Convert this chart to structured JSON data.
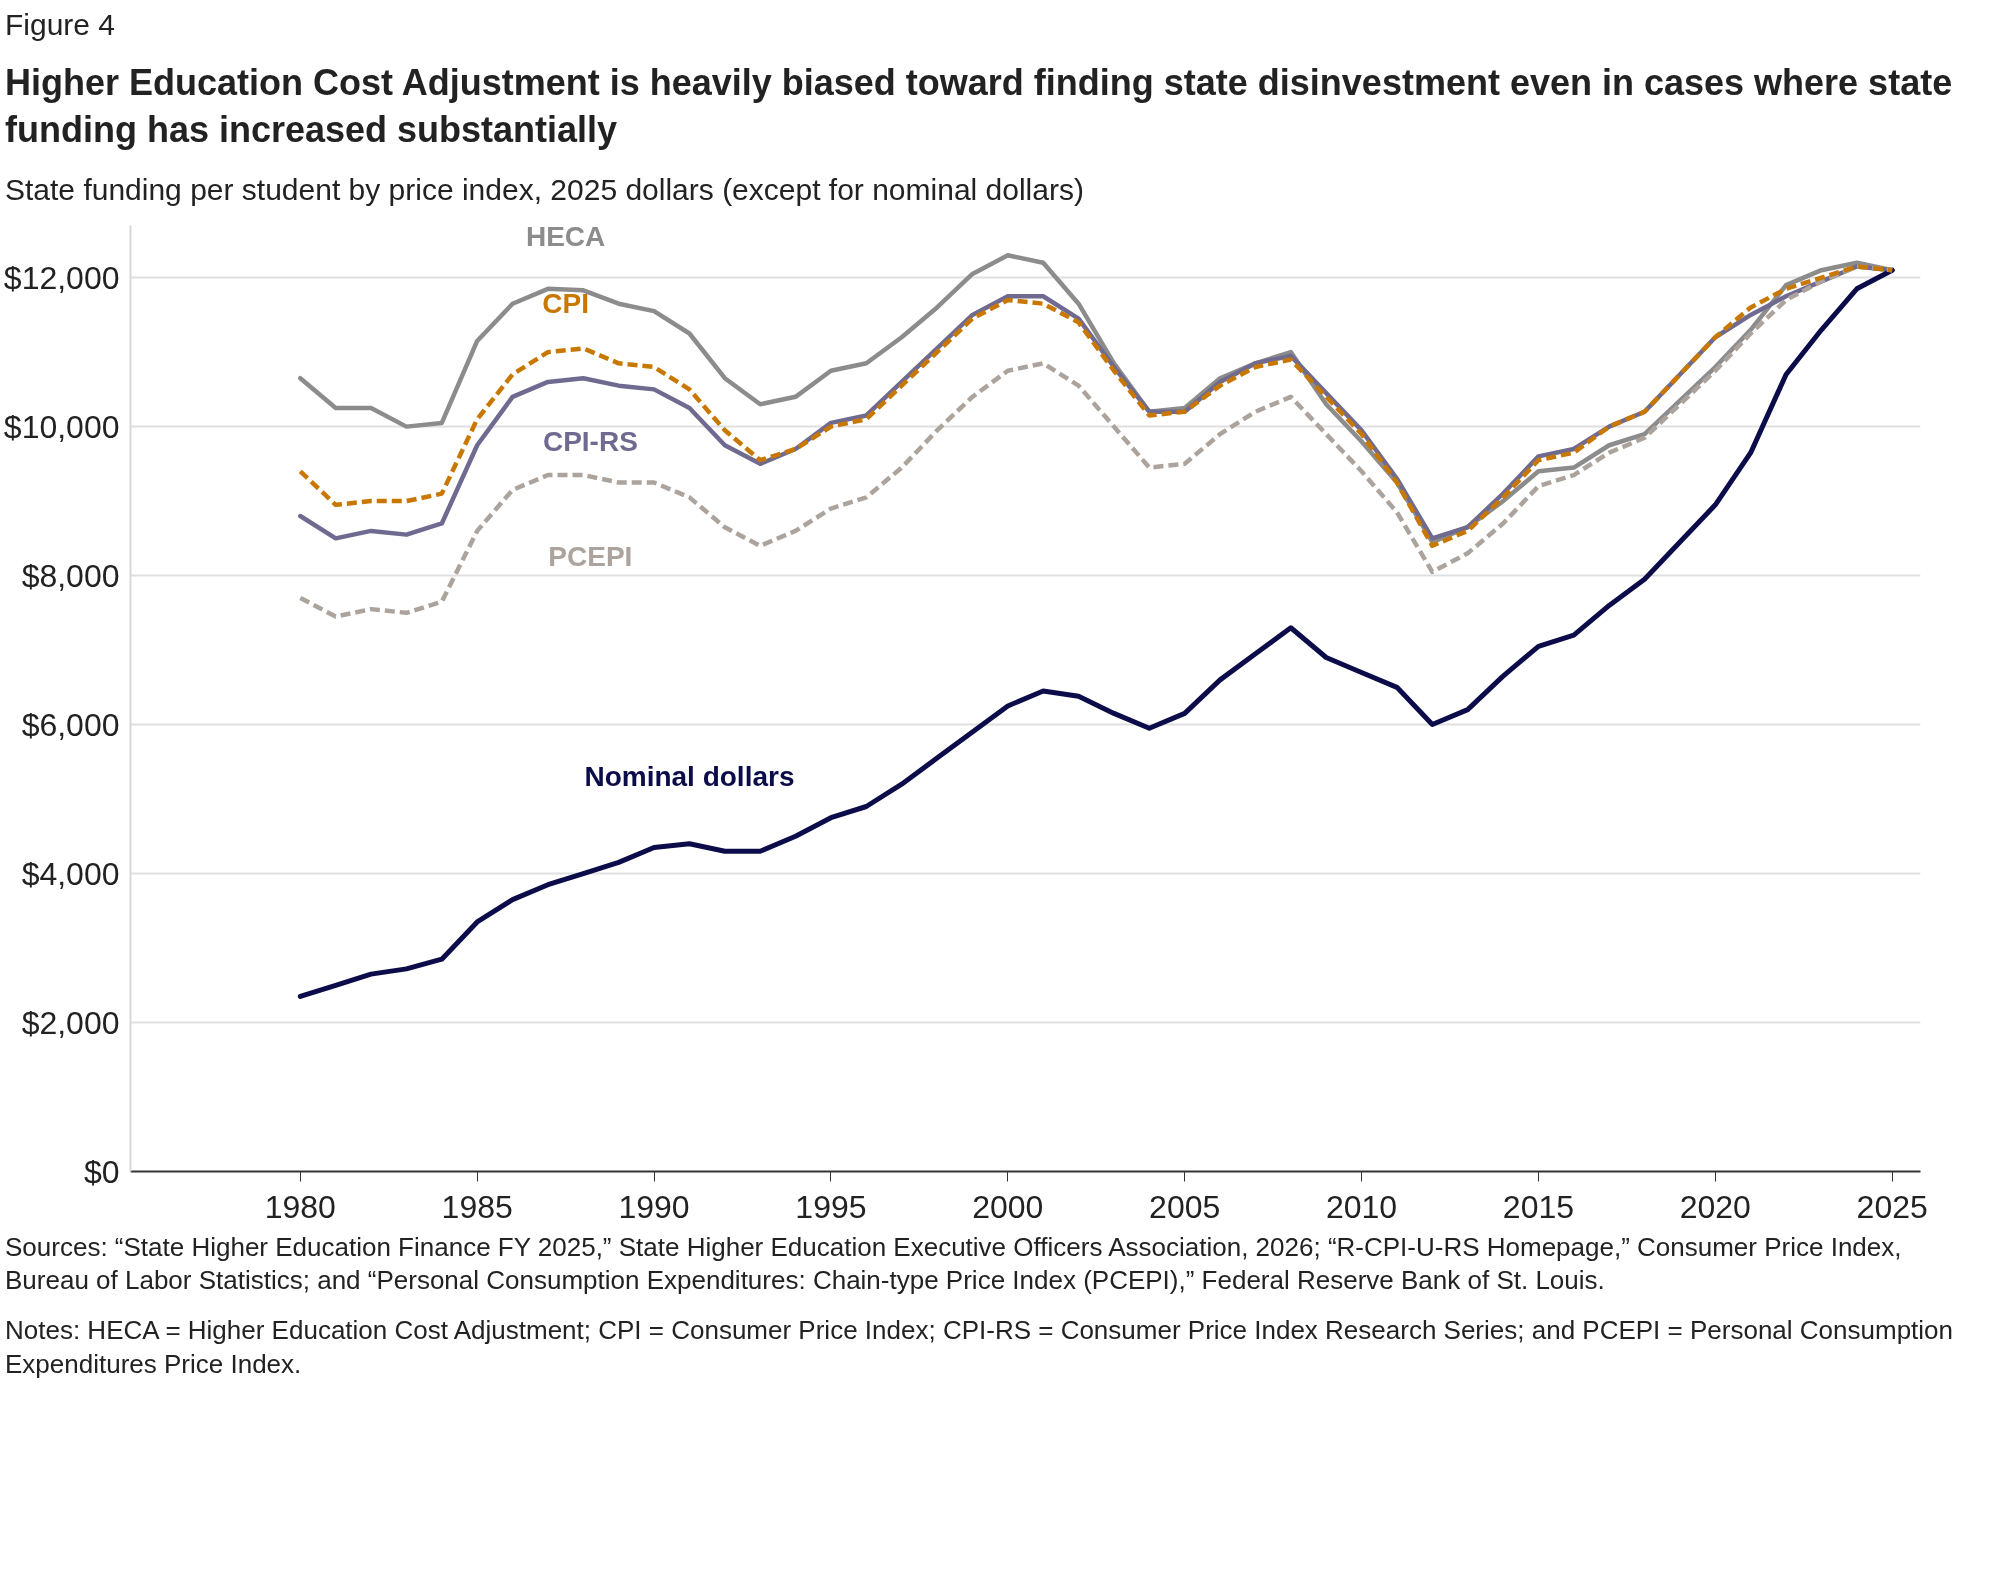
{
  "chart_data": {
    "type": "line",
    "title": "Higher Education Cost Adjustment is heavily biased toward finding state disinvestment even in cases where state funding has increased substantially",
    "subtitle": "State funding per student by price index, 2025 dollars (except for nominal dollars)",
    "x": [
      1980,
      1981,
      1982,
      1983,
      1984,
      1985,
      1986,
      1987,
      1988,
      1989,
      1990,
      1991,
      1992,
      1993,
      1994,
      1995,
      1996,
      1997,
      1998,
      1999,
      2000,
      2001,
      2002,
      2003,
      2004,
      2005,
      2006,
      2007,
      2008,
      2009,
      2010,
      2011,
      2012,
      2013,
      2014,
      2015,
      2016,
      2017,
      2018,
      2019,
      2020,
      2021,
      2022,
      2023,
      2024,
      2025
    ],
    "series": [
      {
        "name": "HECA",
        "color": "#8c8c8c",
        "line_style": "solid",
        "values": [
          10650,
          10250,
          10250,
          10000,
          10050,
          11150,
          11650,
          11850,
          11830,
          11650,
          11550,
          11250,
          10650,
          10300,
          10400,
          10750,
          10850,
          11200,
          11600,
          12050,
          12300,
          12200,
          11650,
          10850,
          10200,
          10250,
          10650,
          10850,
          11000,
          10300,
          9800,
          9250,
          8450,
          8650,
          9000,
          9400,
          9450,
          9750,
          9900,
          10350,
          10800,
          11300,
          11900,
          12100,
          12200,
          12100
        ]
      },
      {
        "name": "CPI",
        "color": "#c87800",
        "line_style": "dashed",
        "values": [
          9400,
          8950,
          9000,
          9000,
          9100,
          10100,
          10700,
          11000,
          11050,
          10850,
          10800,
          10500,
          9950,
          9550,
          9700,
          10000,
          10100,
          10550,
          11000,
          11450,
          11700,
          11650,
          11400,
          10750,
          10150,
          10200,
          10550,
          10800,
          10900,
          10400,
          9900,
          9250,
          8400,
          8600,
          9050,
          9550,
          9650,
          10000,
          10200,
          10700,
          11200,
          11600,
          11850,
          12000,
          12150,
          12100
        ]
      },
      {
        "name": "CPI-RS",
        "color": "#6f6a90",
        "line_style": "solid",
        "values": [
          8800,
          8500,
          8600,
          8550,
          8700,
          9750,
          10400,
          10600,
          10650,
          10550,
          10500,
          10250,
          9750,
          9500,
          9700,
          10050,
          10150,
          10600,
          11050,
          11500,
          11750,
          11750,
          11450,
          10800,
          10200,
          10200,
          10600,
          10850,
          10950,
          10450,
          9950,
          9300,
          8500,
          8650,
          9100,
          9600,
          9700,
          10000,
          10200,
          10700,
          11200,
          11500,
          11750,
          11950,
          12150,
          12100
        ]
      },
      {
        "name": "PCEPI",
        "color": "#aca49c",
        "line_style": "dashed",
        "values": [
          7700,
          7450,
          7550,
          7500,
          7650,
          8600,
          9150,
          9350,
          9350,
          9250,
          9250,
          9050,
          8650,
          8400,
          8600,
          8900,
          9050,
          9450,
          9950,
          10400,
          10750,
          10850,
          10550,
          10000,
          9450,
          9500,
          9900,
          10200,
          10400,
          9900,
          9400,
          8850,
          8050,
          8300,
          8700,
          9200,
          9350,
          9650,
          9850,
          10300,
          10750,
          11250,
          11700,
          11950,
          12150,
          12100
        ]
      },
      {
        "name": "Nominal dollars",
        "color": "#0c0c4a",
        "line_style": "solid",
        "values": [
          2350,
          2500,
          2650,
          2720,
          2850,
          3350,
          3650,
          3850,
          4000,
          4150,
          4350,
          4400,
          4300,
          4300,
          4500,
          4750,
          4900,
          5200,
          5550,
          5900,
          6250,
          6450,
          6380,
          6150,
          5950,
          6150,
          6600,
          6950,
          7300,
          6900,
          6700,
          6500,
          6000,
          6200,
          6650,
          7050,
          7200,
          7600,
          7950,
          8450,
          8950,
          9650,
          10700,
          11300,
          11850,
          12100
        ]
      }
    ],
    "xlim": [
      1975.2,
      2025.8
    ],
    "xticks": [
      1980,
      1985,
      1990,
      1995,
      2000,
      2005,
      2010,
      2015,
      2020,
      2025
    ],
    "ylim": [
      0,
      12700
    ],
    "yticks": [
      {
        "value": 0,
        "label": "$0"
      },
      {
        "value": 2000,
        "label": "$2,000"
      },
      {
        "value": 4000,
        "label": "$4,000"
      },
      {
        "value": 6000,
        "label": "$6,000"
      },
      {
        "value": 8000,
        "label": "$8,000"
      },
      {
        "value": 10000,
        "label": "$10,000"
      },
      {
        "value": 12000,
        "label": "$12,000"
      }
    ],
    "grid": "y",
    "annotations": [
      "Figure 4",
      "Sources: “State Higher Education Finance FY 2025,” State Higher Education Executive Officers Association, 2026; “R-CPI-U-RS Homepage,” Consumer Price Index, Bureau of Labor Statistics; and “Personal Consumption Expenditures: Chain-type Price Index (PCEPI),” Federal Reserve Bank of St. Louis.",
      "Notes: HECA = Higher Education Cost Adjustment; CPI = Consumer Price Index; CPI-RS = Consumer Price Index Research Series; and PCEPI = Personal Consumption Expenditures Price Index."
    ]
  }
}
